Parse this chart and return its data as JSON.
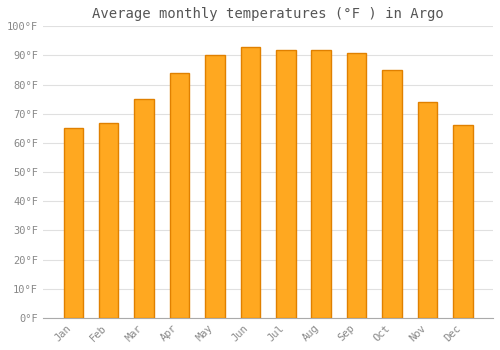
{
  "title": "Average monthly temperatures (°F ) in Argo",
  "months": [
    "Jan",
    "Feb",
    "Mar",
    "Apr",
    "May",
    "Jun",
    "Jul",
    "Aug",
    "Sep",
    "Oct",
    "Nov",
    "Dec"
  ],
  "values": [
    65,
    67,
    75,
    84,
    90,
    93,
    92,
    92,
    91,
    85,
    74,
    66
  ],
  "bar_color_main": "#FFA820",
  "bar_color_edge": "#E08000",
  "background_color": "#FFFFFF",
  "ylim": [
    0,
    100
  ],
  "yticks": [
    0,
    10,
    20,
    30,
    40,
    50,
    60,
    70,
    80,
    90,
    100
  ],
  "ytick_labels": [
    "0°F",
    "10°F",
    "20°F",
    "30°F",
    "40°F",
    "50°F",
    "60°F",
    "70°F",
    "80°F",
    "90°F",
    "100°F"
  ],
  "title_fontsize": 10,
  "tick_fontsize": 7.5,
  "grid_color": "#E0E0E0",
  "tick_color": "#888888",
  "font_family": "monospace",
  "bar_width": 0.55,
  "figsize": [
    5.0,
    3.5
  ],
  "dpi": 100
}
